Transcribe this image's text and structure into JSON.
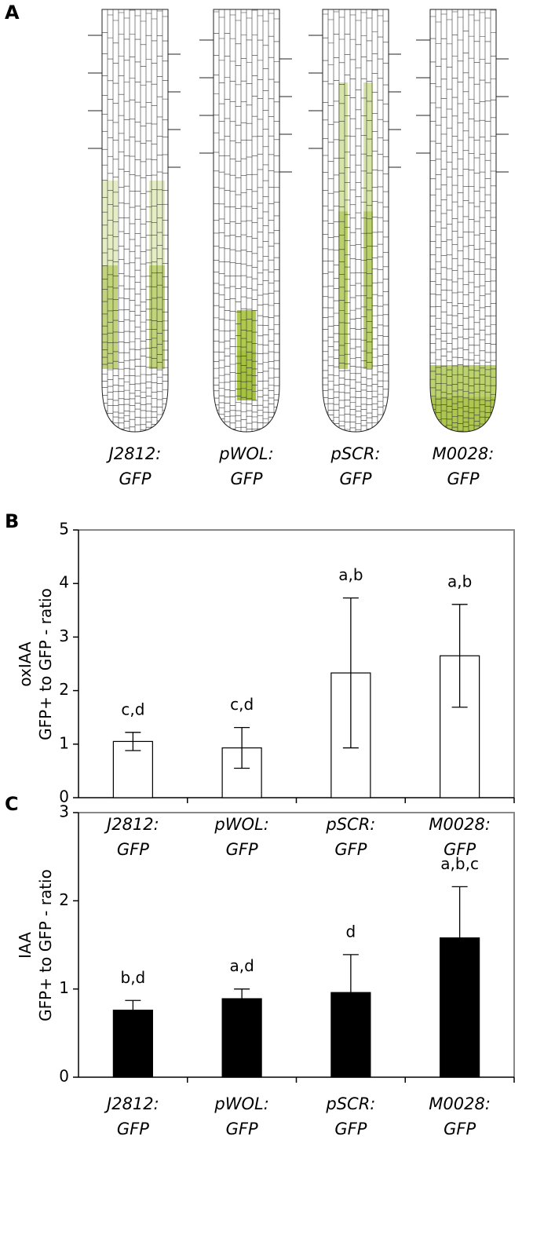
{
  "panels": [
    "A",
    "B",
    "C"
  ],
  "root_captions": [
    "J2812:\nGFP",
    "pWOL:\nGFP",
    "pSCR:\nGFP",
    "M0028:\nGFP"
  ],
  "chart_data": [
    {
      "type": "bar",
      "ylabel": "oxIAA\nGFP+ to GFP - ratio",
      "categories": [
        "J2812:\nGFP",
        "pWOL:\nGFP",
        "pSCR:\nGFP",
        "M0028:\nGFP"
      ],
      "values": [
        1.05,
        0.93,
        2.33,
        2.65
      ],
      "errors": [
        0.17,
        0.38,
        1.4,
        0.96
      ],
      "annotations": [
        "c,d",
        "c,d",
        "a,b",
        "a,b"
      ],
      "color": "#ffffff",
      "ylim": [
        0,
        5
      ],
      "yticks": [
        0,
        1,
        2,
        3,
        4,
        5
      ]
    },
    {
      "type": "bar",
      "ylabel": "IAA\nGFP+ to GFP - ratio",
      "categories": [
        "J2812:\nGFP",
        "pWOL:\nGFP",
        "pSCR:\nGFP",
        "M0028:\nGFP"
      ],
      "values": [
        0.76,
        0.89,
        0.96,
        1.58
      ],
      "errors": [
        0.11,
        0.11,
        0.43,
        0.58
      ],
      "annotations": [
        "b,d",
        "a,d",
        "d",
        "a,b,c"
      ],
      "color": "#000000",
      "ylim": [
        0,
        3
      ],
      "yticks": [
        0,
        1,
        2,
        3
      ]
    }
  ]
}
